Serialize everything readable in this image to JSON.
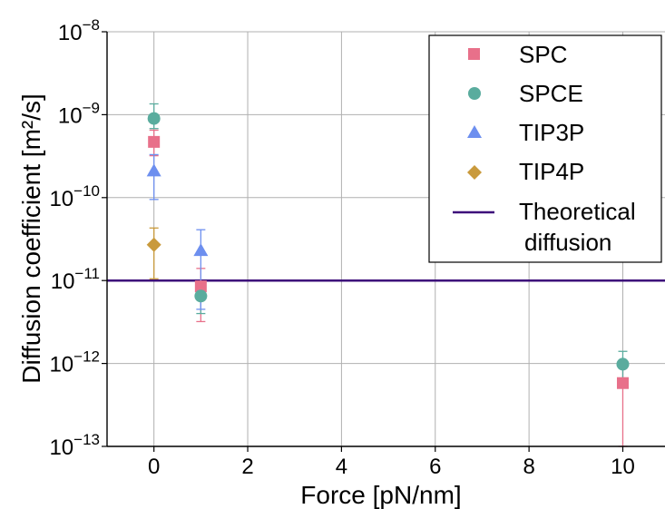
{
  "chart_data": {
    "type": "scatter",
    "title": "",
    "xlabel": "Force [pN/nm]",
    "ylabel": "Diffusion coefficient [m²/s]",
    "xlim": [
      -1,
      10.9
    ],
    "ylim": [
      1e-13,
      1e-08
    ],
    "y_scale": "log",
    "grid": true,
    "legend_position": "top-right",
    "x_ticks": [
      {
        "value": 0,
        "label": "0"
      },
      {
        "value": 2,
        "label": "2"
      },
      {
        "value": 4,
        "label": "4"
      },
      {
        "value": 6,
        "label": "6"
      },
      {
        "value": 8,
        "label": "8"
      },
      {
        "value": 10,
        "label": "10"
      }
    ],
    "y_ticks": [
      {
        "value": 1e-13,
        "base": "10",
        "exp": "−13"
      },
      {
        "value": 1e-12,
        "base": "10",
        "exp": "−12"
      },
      {
        "value": 1e-11,
        "base": "10",
        "exp": "−11"
      },
      {
        "value": 1e-10,
        "base": "10",
        "exp": "−10"
      },
      {
        "value": 1e-09,
        "base": "10",
        "exp": "−9"
      },
      {
        "value": 1e-08,
        "base": "10",
        "exp": "−8"
      }
    ],
    "series": [
      {
        "name": "SPC",
        "marker": "square",
        "color": "#e8708a",
        "points": [
          {
            "x": 0,
            "y": 4.7e-10,
            "y_low": 3.2e-10,
            "y_high": 6.5e-10
          },
          {
            "x": 1,
            "y": 8.5e-12,
            "y_low": 3.2e-12,
            "y_high": 1.4e-11
          },
          {
            "x": 10,
            "y": 5.8e-13,
            "y_low": 1e-13,
            "y_high": 1e-12
          }
        ]
      },
      {
        "name": "SPCE",
        "marker": "circle",
        "color": "#5aac9e",
        "points": [
          {
            "x": 0,
            "y": 9e-10,
            "y_low": 6.8e-10,
            "y_high": 1.35e-09
          },
          {
            "x": 1,
            "y": 6.5e-12,
            "y_low": 4e-12,
            "y_high": 9e-12
          },
          {
            "x": 10,
            "y": 9.8e-13,
            "y_low": 6e-13,
            "y_high": 1.4e-12
          }
        ]
      },
      {
        "name": "TIP3P",
        "marker": "triangle",
        "color": "#6d8fef",
        "points": [
          {
            "x": 0,
            "y": 2.1e-10,
            "y_low": 9.5e-11,
            "y_high": 3.3e-10
          },
          {
            "x": 1,
            "y": 2.3e-11,
            "y_low": 4.5e-12,
            "y_high": 4.1e-11
          }
        ]
      },
      {
        "name": "TIP4P",
        "marker": "diamond",
        "color": "#c99a3c",
        "points": [
          {
            "x": 0,
            "y": 2.7e-11,
            "y_low": 1.05e-11,
            "y_high": 4.3e-11
          }
        ]
      }
    ],
    "reference_line": {
      "label_line1": "Theoretical",
      "label_line2": "diffusion",
      "y": 1e-11,
      "color": "#3d0d7a"
    }
  }
}
